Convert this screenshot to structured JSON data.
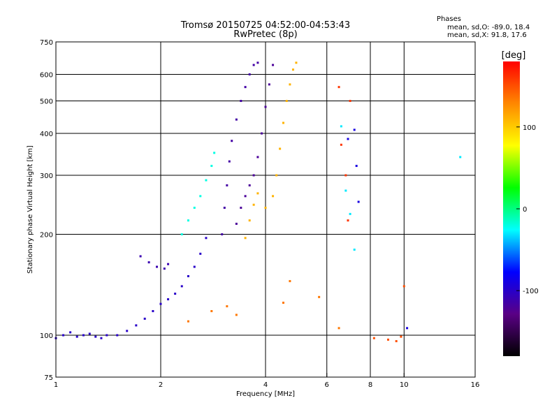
{
  "chart_data": {
    "type": "scatter",
    "title": "Tromsø 20150725 04:52:00-04:53:43",
    "subtitle": "RwPretec (8p)",
    "stats": {
      "heading": "Phases",
      "line1": "mean, sd,O: -89.0, 18.4",
      "line2": "mean, sd,X:  91.8, 17.6"
    },
    "xlabel": "Frequency [MHz]",
    "ylabel": "Stationary phase Virtual Height [km]",
    "x_scale": "log",
    "y_scale": "log",
    "xlim": [
      1,
      16
    ],
    "ylim": [
      75,
      750
    ],
    "x_ticks": [
      {
        "value": 1,
        "label": "1",
        "grid": false
      },
      {
        "value": 2,
        "label": "2",
        "grid": true
      },
      {
        "value": 4,
        "label": "4",
        "grid": true
      },
      {
        "value": 6,
        "label": "6",
        "grid": true
      },
      {
        "value": 8,
        "label": "8",
        "grid": true
      },
      {
        "value": 10,
        "label": "10",
        "grid": true
      },
      {
        "value": 16,
        "label": "16",
        "grid": false
      }
    ],
    "y_ticks": [
      {
        "value": 75,
        "label": "75",
        "grid": false
      },
      {
        "value": 100,
        "label": "100",
        "grid": true
      },
      {
        "value": 200,
        "label": "200",
        "grid": true
      },
      {
        "value": 300,
        "label": "300",
        "grid": true
      },
      {
        "value": 400,
        "label": "400",
        "grid": true
      },
      {
        "value": 500,
        "label": "500",
        "grid": true
      },
      {
        "value": 600,
        "label": "600",
        "grid": true
      },
      {
        "value": 750,
        "label": "750",
        "grid": false
      }
    ],
    "colorbar": {
      "label": "[deg]",
      "range": [
        -180,
        180
      ],
      "ticks": [
        {
          "value": 100,
          "label": "100"
        },
        {
          "value": 0,
          "label": "0"
        },
        {
          "value": -100,
          "label": "-100"
        }
      ],
      "stops": [
        "#000000",
        "#5a0085",
        "#0000ff",
        "#00ffff",
        "#00ff00",
        "#ffff00",
        "#ff8800",
        "#ff0000"
      ]
    },
    "series": [
      {
        "phase": -100,
        "points": [
          [
            1.0,
            98
          ],
          [
            1.05,
            100
          ],
          [
            1.1,
            102
          ],
          [
            1.15,
            99
          ],
          [
            1.2,
            100
          ],
          [
            1.25,
            101
          ],
          [
            1.3,
            99
          ],
          [
            1.35,
            98
          ],
          [
            1.4,
            100
          ],
          [
            1.5,
            100
          ],
          [
            1.6,
            103
          ],
          [
            1.7,
            107
          ],
          [
            1.8,
            112
          ],
          [
            1.9,
            118
          ],
          [
            2.0,
            124
          ],
          [
            2.1,
            128
          ],
          [
            2.2,
            133
          ],
          [
            2.3,
            140
          ],
          [
            2.4,
            150
          ],
          [
            2.5,
            160
          ],
          [
            2.6,
            175
          ],
          [
            2.7,
            195
          ]
        ]
      },
      {
        "phase": -110,
        "points": [
          [
            1.75,
            172
          ],
          [
            1.85,
            165
          ],
          [
            1.95,
            160
          ],
          [
            2.05,
            158
          ],
          [
            2.1,
            163
          ]
        ]
      },
      {
        "phase": -20,
        "points": [
          [
            2.3,
            200
          ],
          [
            2.4,
            220
          ],
          [
            2.5,
            240
          ],
          [
            2.6,
            260
          ],
          [
            2.7,
            290
          ],
          [
            2.8,
            320
          ],
          [
            2.85,
            350
          ]
        ]
      },
      {
        "phase": -115,
        "points": [
          [
            3.0,
            200
          ],
          [
            3.05,
            240
          ],
          [
            3.1,
            280
          ],
          [
            3.15,
            330
          ],
          [
            3.2,
            380
          ],
          [
            3.3,
            440
          ],
          [
            3.4,
            500
          ],
          [
            3.5,
            550
          ],
          [
            3.6,
            600
          ],
          [
            3.7,
            640
          ],
          [
            3.8,
            650
          ]
        ]
      },
      {
        "phase": -120,
        "points": [
          [
            3.3,
            215
          ],
          [
            3.4,
            240
          ],
          [
            3.5,
            260
          ],
          [
            3.6,
            280
          ],
          [
            3.7,
            300
          ],
          [
            3.8,
            340
          ],
          [
            3.9,
            400
          ],
          [
            4.0,
            480
          ],
          [
            4.1,
            560
          ],
          [
            4.2,
            640
          ]
        ]
      },
      {
        "phase": 110,
        "points": [
          [
            3.5,
            195
          ],
          [
            3.6,
            220
          ],
          [
            3.7,
            245
          ],
          [
            3.8,
            265
          ],
          [
            4.0,
            240
          ],
          [
            4.2,
            260
          ],
          [
            4.3,
            300
          ],
          [
            4.4,
            360
          ],
          [
            4.5,
            430
          ],
          [
            4.6,
            500
          ],
          [
            4.7,
            560
          ],
          [
            4.8,
            620
          ],
          [
            4.9,
            650
          ]
        ]
      },
      {
        "phase": 135,
        "points": [
          [
            2.4,
            110
          ],
          [
            2.8,
            118
          ],
          [
            3.1,
            122
          ],
          [
            3.3,
            115
          ],
          [
            4.5,
            125
          ],
          [
            4.7,
            145
          ],
          [
            5.7,
            130
          ],
          [
            6.5,
            105
          ]
        ]
      },
      {
        "phase": 160,
        "points": [
          [
            6.5,
            550
          ],
          [
            6.6,
            370
          ],
          [
            6.8,
            300
          ],
          [
            6.9,
            220
          ],
          [
            7.0,
            500
          ]
        ]
      },
      {
        "phase": -30,
        "points": [
          [
            6.6,
            420
          ],
          [
            6.8,
            270
          ],
          [
            7.0,
            230
          ],
          [
            7.2,
            180
          ],
          [
            14.5,
            340
          ]
        ]
      },
      {
        "phase": -90,
        "points": [
          [
            6.9,
            385
          ],
          [
            7.2,
            410
          ],
          [
            7.3,
            320
          ],
          [
            7.4,
            250
          ],
          [
            10.2,
            105
          ]
        ]
      },
      {
        "phase": 150,
        "points": [
          [
            8.2,
            98
          ],
          [
            9.0,
            97
          ],
          [
            9.5,
            96
          ],
          [
            9.8,
            99
          ],
          [
            10.0,
            140
          ]
        ]
      }
    ]
  }
}
